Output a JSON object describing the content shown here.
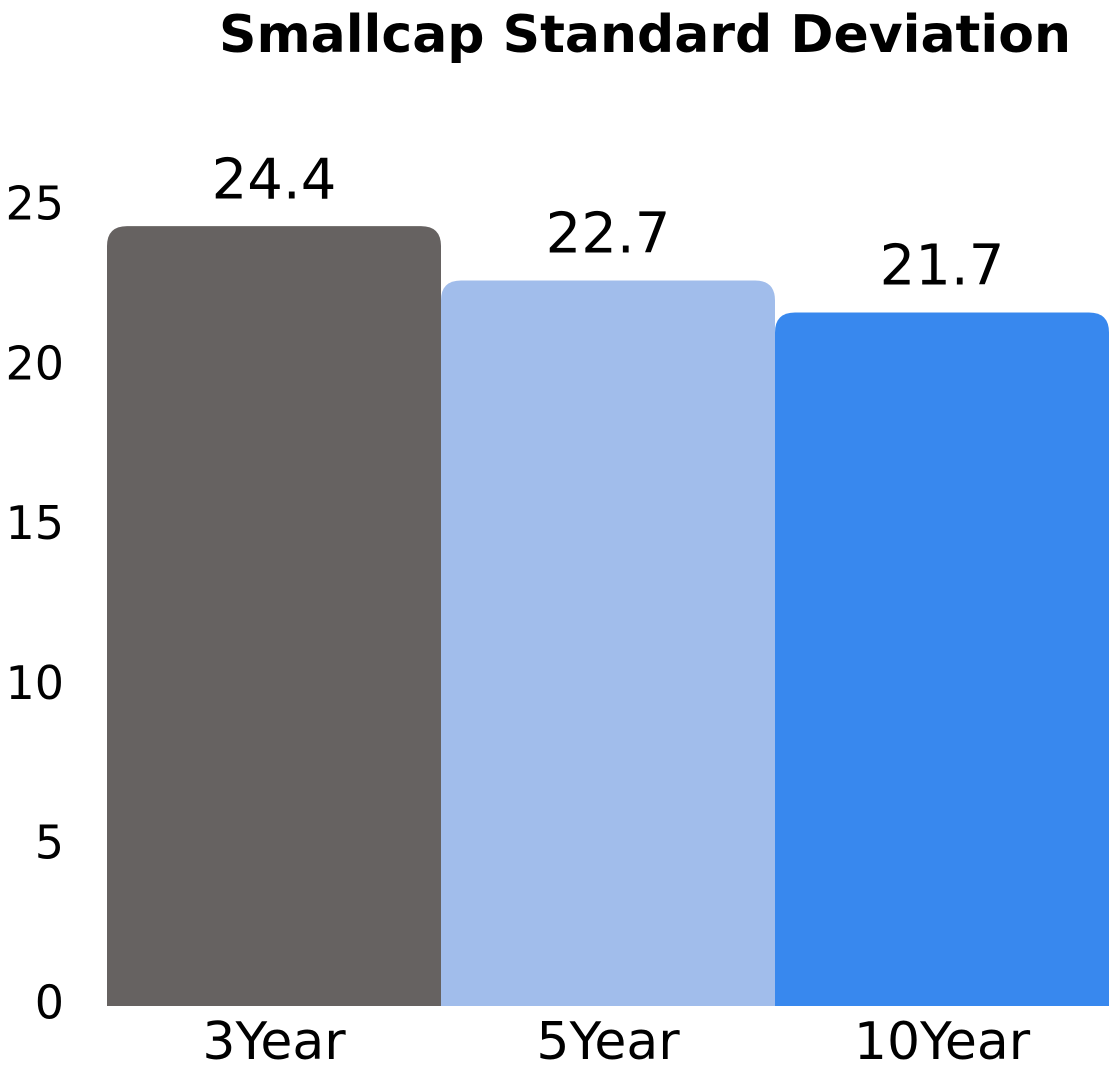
{
  "chart_data": {
    "type": "bar",
    "title": "Smallcap Standard Deviation",
    "categories": [
      "3Year",
      "5Year",
      "10Year"
    ],
    "values": [
      24.4,
      22.7,
      21.7
    ],
    "colors": [
      "#666261",
      "#a1bdeb",
      "#3888ee"
    ],
    "ylim": [
      0,
      25
    ],
    "yticks": [
      0,
      5,
      10,
      15,
      20,
      25
    ],
    "grid": false
  }
}
